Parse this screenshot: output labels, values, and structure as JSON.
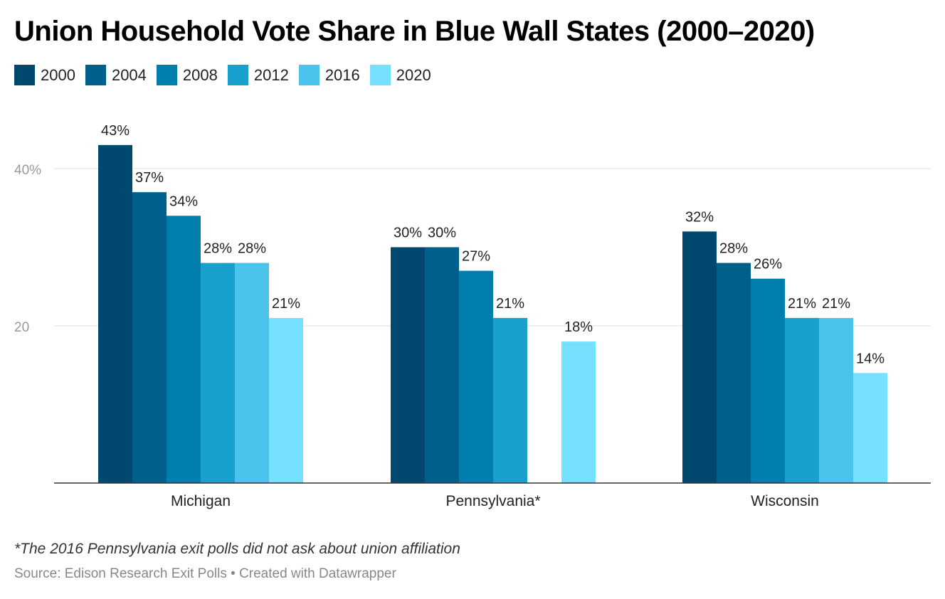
{
  "title": "Union Household Vote Share in Blue Wall States (2000–2020)",
  "footnote": "*The 2016 Pennsylvania exit polls did not ask about union affiliation",
  "source": "Source: Edison Research Exit Polls • Created with Datawrapper",
  "chart_data": {
    "type": "bar",
    "title": "Union Household Vote Share in Blue Wall States (2000–2020)",
    "categories": [
      "Michigan",
      "Pennsylvania*",
      "Wisconsin"
    ],
    "series": [
      {
        "name": "2000",
        "color": "#00486e",
        "values": [
          43,
          30,
          32
        ],
        "labels": [
          "43%",
          "30%",
          "32%"
        ]
      },
      {
        "name": "2004",
        "color": "#005f8b",
        "values": [
          37,
          30,
          28
        ],
        "labels": [
          "37%",
          "30%",
          "28%"
        ]
      },
      {
        "name": "2008",
        "color": "#007fac",
        "values": [
          34,
          27,
          26
        ],
        "labels": [
          "34%",
          "27%",
          "26%"
        ]
      },
      {
        "name": "2012",
        "color": "#18a1cd",
        "values": [
          28,
          21,
          21
        ],
        "labels": [
          "28%",
          "21%",
          "21%"
        ]
      },
      {
        "name": "2016",
        "color": "#4cc3ec",
        "values": [
          28,
          null,
          21
        ],
        "labels": [
          "28%",
          "",
          "21%"
        ]
      },
      {
        "name": "2020",
        "color": "#76e1fe",
        "values": [
          21,
          18,
          14
        ],
        "labels": [
          "21%",
          "18%",
          "14%"
        ]
      }
    ],
    "yticks": [
      {
        "value": 20,
        "label": "20"
      },
      {
        "value": 40,
        "label": "40%"
      }
    ],
    "ylim": [
      0,
      45
    ],
    "grid": true,
    "legend": "top-left"
  }
}
